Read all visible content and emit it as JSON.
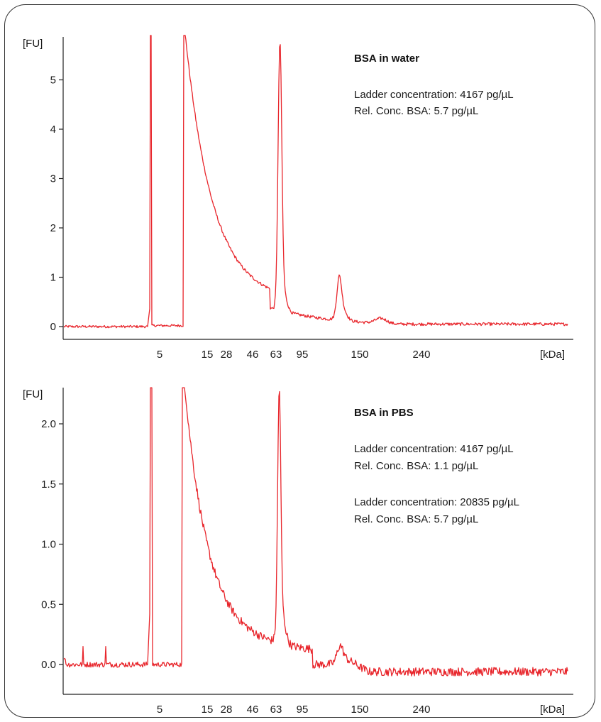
{
  "chart_data": [
    {
      "type": "line",
      "title": "BSA in water",
      "annotations": [
        "Ladder concentration: 4167 pg/µL",
        "Rel. Conc. BSA:  5.7 pg/µL"
      ],
      "ylabel": "[FU]",
      "xlabel": "[kDa]",
      "xtick_labels": [
        "5",
        "15",
        "28",
        "46",
        "63",
        "95",
        "150",
        "240"
      ],
      "yticks": [
        "0",
        "1",
        "2",
        "3",
        "4",
        "5"
      ],
      "ylim": [
        -0.3,
        5.9
      ],
      "color": "#e8262c",
      "features": {
        "baseline": 0.0,
        "marker_peak_kDa_label": "5",
        "system_decay_start": 5.85,
        "main_peak": {
          "near_label": "63",
          "height": 5.2
        },
        "dimer_peak": {
          "between_labels": [
            "95",
            "150"
          ],
          "height": 0.7
        },
        "small_bump": {
          "after_label": "150",
          "height": 0.1
        }
      }
    },
    {
      "type": "line",
      "title": "BSA in PBS",
      "annotations": [
        "Ladder concentration:  4167 pg/µL",
        "Rel. Conc. BSA:  1.1 pg/µL",
        "Ladder concentration:  20835 pg/µL",
        "Rel. Conc. BSA:  5.7 pg/µL"
      ],
      "ylabel": "[FU]",
      "xlabel": "[kDa]",
      "xtick_labels": [
        "5",
        "15",
        "28",
        "46",
        "63",
        "95",
        "150",
        "240"
      ],
      "yticks": [
        "0.0",
        "0.5",
        "1.0",
        "1.5",
        "2.0"
      ],
      "ylim": [
        -0.25,
        2.3
      ],
      "color": "#e8262c",
      "features": {
        "baseline": 0.0,
        "late_baseline": -0.06,
        "marker_peak_kDa_label": "5",
        "system_decay_start": 2.3,
        "main_peak": {
          "near_label": "63",
          "height": 1.93
        },
        "dimer_peak": {
          "between_labels": [
            "95",
            "150"
          ],
          "height": 0.12
        }
      }
    }
  ]
}
